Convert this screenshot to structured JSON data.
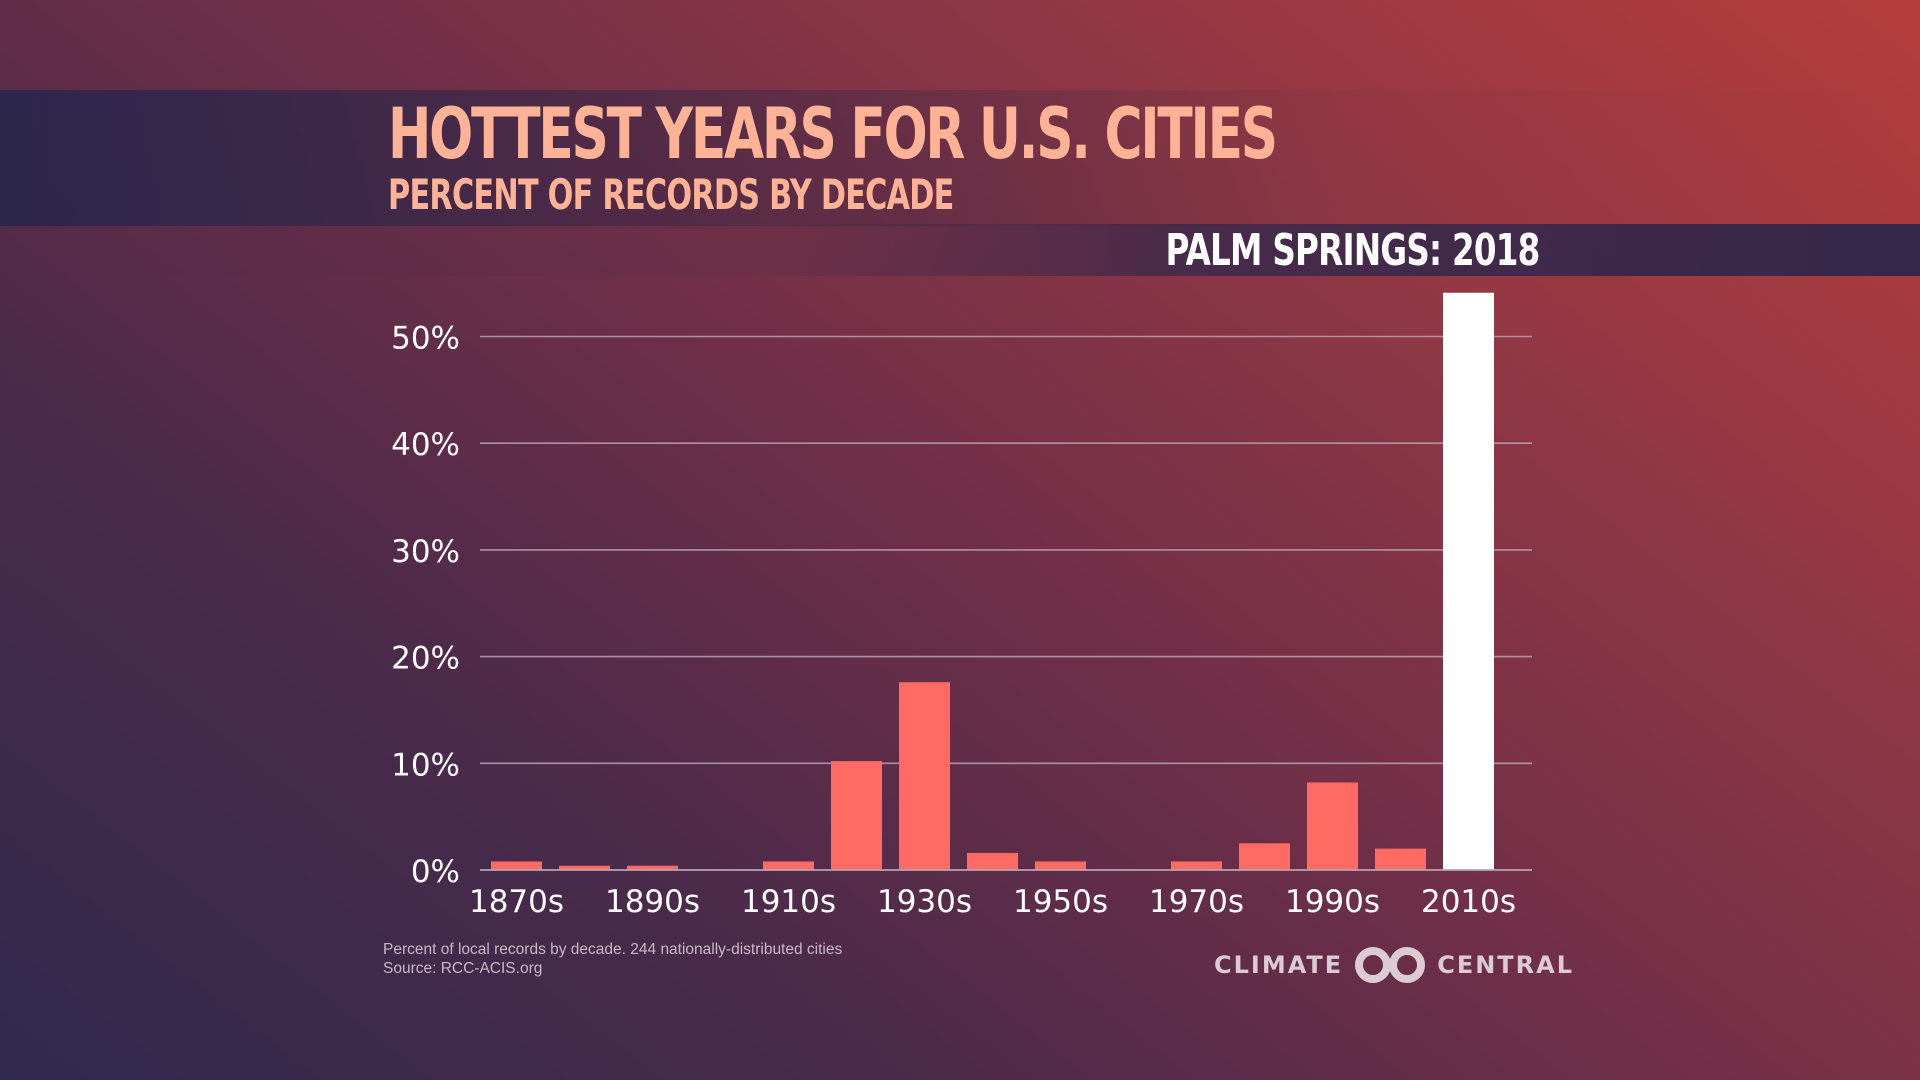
{
  "title": "HOTTEST YEARS FOR U.S. CITIES",
  "subtitle": "PERCENT OF RECORDS BY DECADE",
  "city_label": "PALM SPRINGS: 2018",
  "footnote": {
    "line1": "Percent of local records by decade. 244 nationally-distributed cities",
    "line2": "Source: RCC-ACIS.org"
  },
  "logo": {
    "left": "CLIMATE",
    "right": "CENTRAL",
    "icon": "climate-central-logo-icon"
  },
  "colors": {
    "bar": "#ff6b63",
    "highlight_bar": "#ffffff",
    "title": "#ffb396",
    "grid": "#b7a3b3",
    "tick_text": "#ffffff"
  },
  "chart_data": {
    "type": "bar",
    "title": "HOTTEST YEARS FOR U.S. CITIES",
    "subtitle": "PERCENT OF RECORDS BY DECADE",
    "categories": [
      "1870s",
      "1880s",
      "1890s",
      "1900s",
      "1910s",
      "1920s",
      "1930s",
      "1940s",
      "1950s",
      "1960s",
      "1970s",
      "1980s",
      "1990s",
      "2000s",
      "2010s"
    ],
    "values": [
      0.8,
      0.4,
      0.4,
      0,
      0.8,
      10.2,
      17.6,
      1.6,
      0.8,
      0,
      0.8,
      2.5,
      8.2,
      2.0,
      54.1
    ],
    "highlight_category": "2010s",
    "x_tick_labels": [
      "1870s",
      "1890s",
      "1910s",
      "1930s",
      "1950s",
      "1970s",
      "1990s",
      "2010s"
    ],
    "y_ticks": [
      0,
      10,
      20,
      30,
      40,
      50
    ],
    "y_tick_labels": [
      "0%",
      "10%",
      "20%",
      "30%",
      "40%",
      "50%"
    ],
    "ylim": [
      0,
      55
    ],
    "xlabel": "",
    "ylabel": "",
    "grid": true,
    "legend": "none"
  }
}
